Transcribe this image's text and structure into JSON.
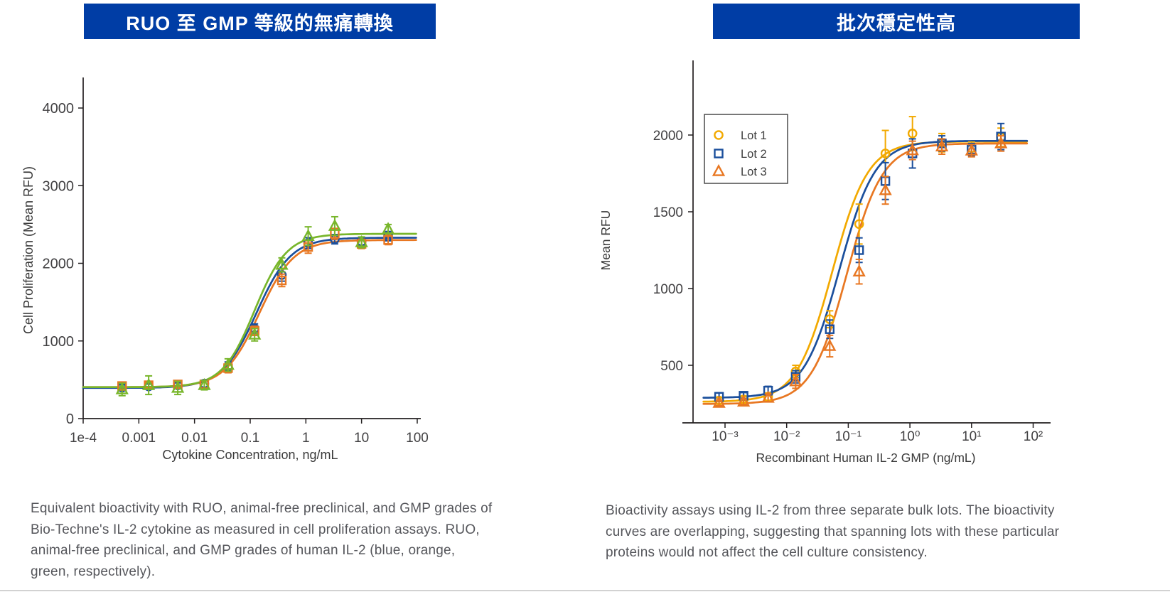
{
  "panels": {
    "left": {
      "banner": {
        "text": "RUO 至 GMP 等級的無痛轉換",
        "bg": "#003DA5",
        "fg": "#ffffff"
      },
      "caption_lines": [
        "Equivalent bioactivity with RUO, animal-free preclinical, and GMP grades of",
        "Bio-Techne's IL-2 cytokine as measured in cell proliferation assays. RUO,",
        "animal-free preclinical, and GMP grades of human IL-2 (blue, orange,",
        "green, respectively)."
      ]
    },
    "right": {
      "banner": {
        "text": "批次穩定性高",
        "bg": "#003DA5",
        "fg": "#ffffff"
      },
      "caption_lines": [
        "Bioactivity assays using IL-2 from three separate bulk lots. The bioactivity",
        "curves are overlapping, suggesting that spanning lots with these particular",
        "proteins would not affect the cell culture consistency."
      ]
    }
  },
  "chart_data": [
    {
      "type": "line",
      "title": "",
      "xlabel": "Cytokine Concentration, ng/mL",
      "ylabel": "Cell Proliferation (Mean RFU)",
      "x_scale": "log",
      "xlim": [
        0.0001,
        100
      ],
      "ylim": [
        0,
        4390
      ],
      "grid": false,
      "legend": null,
      "x_ticks": [
        "1e-4",
        "0.001",
        "0.01",
        "0.1",
        "1",
        "10",
        "100"
      ],
      "x_tick_values": [
        0.0001,
        0.001,
        0.01,
        0.1,
        1,
        10,
        100
      ],
      "y_ticks": [
        0,
        1000,
        2000,
        3000,
        4000
      ],
      "x": [
        0.0005,
        0.0015,
        0.005,
        0.015,
        0.04,
        0.12,
        0.37,
        1.1,
        3.3,
        10,
        30
      ],
      "series": [
        {
          "name": "RUO (blue)",
          "marker": "circle",
          "color": "#1B4F9C",
          "values": [
            400,
            415,
            430,
            450,
            670,
            1160,
            1850,
            2260,
            2310,
            2280,
            2350
          ],
          "errors": [
            35,
            30,
            30,
            45,
            60,
            60,
            80,
            70,
            60,
            50,
            60
          ],
          "fit": {
            "bottom": 395,
            "top": 2330,
            "ec50": 0.13,
            "hill": 1.4
          }
        },
        {
          "name": "Animal-free preclinical (orange)",
          "marker": "square",
          "color": "#E87722",
          "values": [
            420,
            430,
            440,
            440,
            650,
            1130,
            1780,
            2210,
            2380,
            2250,
            2300
          ],
          "errors": [
            40,
            35,
            35,
            45,
            60,
            60,
            80,
            80,
            70,
            60,
            60
          ],
          "fit": {
            "bottom": 405,
            "top": 2300,
            "ec50": 0.145,
            "hill": 1.4
          }
        },
        {
          "name": "GMP (green)",
          "marker": "triangle",
          "color": "#78B62B",
          "values": [
            375,
            430,
            395,
            430,
            690,
            1080,
            1980,
            2350,
            2480,
            2270,
            2440
          ],
          "errors": [
            80,
            120,
            85,
            60,
            80,
            80,
            90,
            120,
            120,
            70,
            60
          ],
          "fit": {
            "bottom": 405,
            "top": 2380,
            "ec50": 0.12,
            "hill": 1.5
          }
        }
      ]
    },
    {
      "type": "line",
      "title": "",
      "xlabel": "Recombinant Human IL-2 GMP (ng/mL)",
      "ylabel": "Mean RFU",
      "x_scale": "log",
      "xlim": [
        0.001,
        100
      ],
      "ylim": [
        125,
        2486
      ],
      "grid": false,
      "legend": {
        "position": "upper-left",
        "entries": [
          "Lot 1",
          "Lot 2",
          "Lot 3"
        ]
      },
      "x_ticks": [
        "10⁻³",
        "10⁻²",
        "10⁻¹",
        "10⁰",
        "10¹",
        "10²"
      ],
      "x_tick_values": [
        0.001,
        0.01,
        0.1,
        1,
        10,
        100
      ],
      "y_ticks": [
        500,
        1000,
        1500,
        2000
      ],
      "x": [
        0.0008,
        0.002,
        0.005,
        0.014,
        0.05,
        0.15,
        0.4,
        1.1,
        3.3,
        10,
        30
      ],
      "series": [
        {
          "name": "Lot 1",
          "marker": "circle",
          "color": "#F2A900",
          "values": [
            270,
            278,
            295,
            460,
            800,
            1420,
            1880,
            2010,
            1950,
            1915,
            1985
          ],
          "errors": [
            20,
            18,
            25,
            40,
            55,
            130,
            150,
            110,
            60,
            40,
            60
          ],
          "fit": {
            "bottom": 262,
            "top": 1958,
            "ec50": 0.055,
            "hill": 1.5
          }
        },
        {
          "name": "Lot 2",
          "marker": "square",
          "color": "#1B4F9C",
          "values": [
            295,
            302,
            335,
            425,
            735,
            1250,
            1700,
            1880,
            1945,
            1905,
            1990
          ],
          "errors": [
            25,
            20,
            28,
            40,
            60,
            80,
            120,
            95,
            50,
            40,
            85
          ],
          "fit": {
            "bottom": 288,
            "top": 1962,
            "ec50": 0.072,
            "hill": 1.5
          }
        },
        {
          "name": "Lot 3",
          "marker": "triangle",
          "color": "#E87722",
          "values": [
            255,
            262,
            288,
            395,
            625,
            1110,
            1640,
            1900,
            1925,
            1898,
            1945
          ],
          "errors": [
            18,
            18,
            25,
            45,
            70,
            80,
            90,
            60,
            50,
            40,
            50
          ],
          "fit": {
            "bottom": 248,
            "top": 1945,
            "ec50": 0.095,
            "hill": 1.5
          }
        }
      ]
    }
  ],
  "colors": {
    "banner_bg": "#003DA5",
    "caption_text": "#55565B",
    "axis_line": "#231F20",
    "tick_label": "#414042",
    "axis_title": "#3A3A3A"
  }
}
